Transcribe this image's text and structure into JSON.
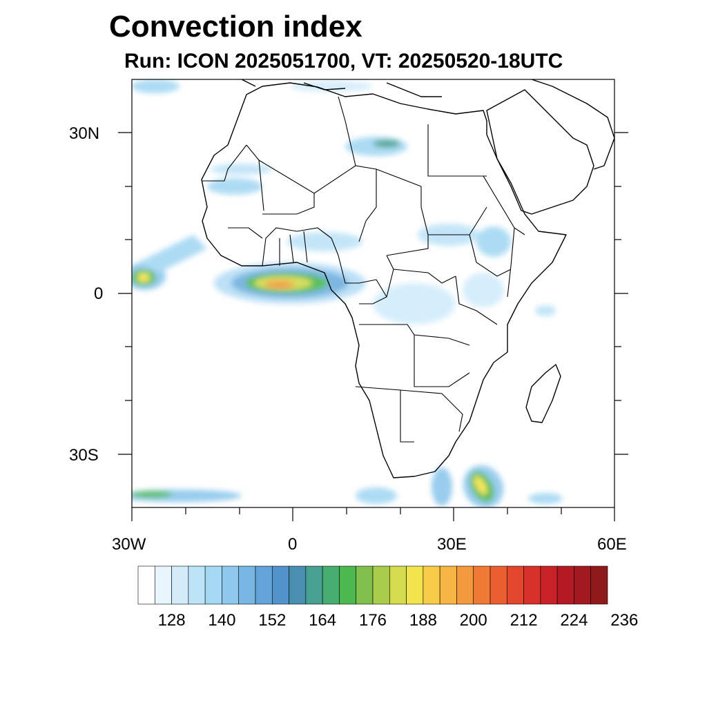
{
  "title": "Convection index",
  "subtitle": "Run: ICON 2025051700,  VT: 20250520-18UTC",
  "axes": {
    "lat_labels": [
      "30N",
      "0",
      "30S"
    ],
    "lon_labels": [
      "30W",
      "0",
      "30E",
      "60E"
    ]
  },
  "map_extent": {
    "lon": [
      -30,
      60
    ],
    "lat": [
      -40,
      40
    ]
  },
  "colorbar": {
    "tick_labels": [
      "128",
      "140",
      "152",
      "164",
      "176",
      "188",
      "200",
      "212",
      "224",
      "236"
    ],
    "colors": [
      "#ffffff",
      "#e9f5fc",
      "#d2ecfa",
      "#bde3f7",
      "#a4d8f3",
      "#8ec8ec",
      "#78b6e3",
      "#64a3da",
      "#5393cc",
      "#4990b0",
      "#47a191",
      "#45ad70",
      "#4cb84d",
      "#7ec04b",
      "#a9cc4c",
      "#d3dc4e",
      "#f2e44c",
      "#f8cc48",
      "#f7b543",
      "#f49a3c",
      "#ef7a35",
      "#ea5e30",
      "#e2462c",
      "#d8302a",
      "#c82127",
      "#b31a24",
      "#a01a20",
      "#8f1a1c"
    ],
    "color_meaning": "white = low, blue-green = moderate, yellow-red = high"
  }
}
